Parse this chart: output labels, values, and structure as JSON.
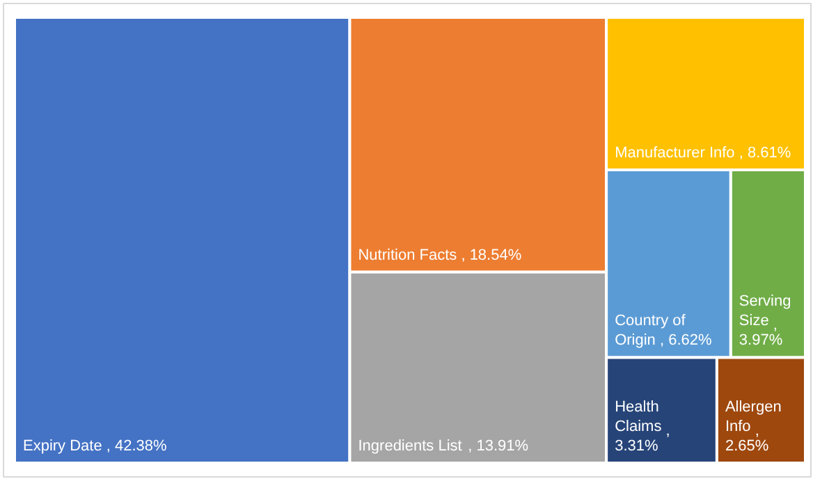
{
  "chart_data": {
    "type": "other",
    "categories": [
      "Expiry Date",
      "Nutrition Facts",
      "Ingredients List",
      "Manufacturer Info",
      "Country of Origin",
      "Serving Size",
      "Health Claims",
      "Allergen Info"
    ],
    "values": [
      42.38,
      18.54,
      13.91,
      8.61,
      6.62,
      3.97,
      3.31,
      2.65
    ],
    "value_labels": [
      ", 42.38%",
      ", 18.54%",
      ", 13.91%",
      ", 8.61%",
      ", 6.62%",
      ", 3.97%",
      ", 3.31%",
      ", 2.65%"
    ],
    "colors": [
      "#4472c4",
      "#ed7d31",
      "#a5a5a5",
      "#ffc000",
      "#5b9bd5",
      "#70ad47",
      "#264478",
      "#9e480e"
    ]
  }
}
